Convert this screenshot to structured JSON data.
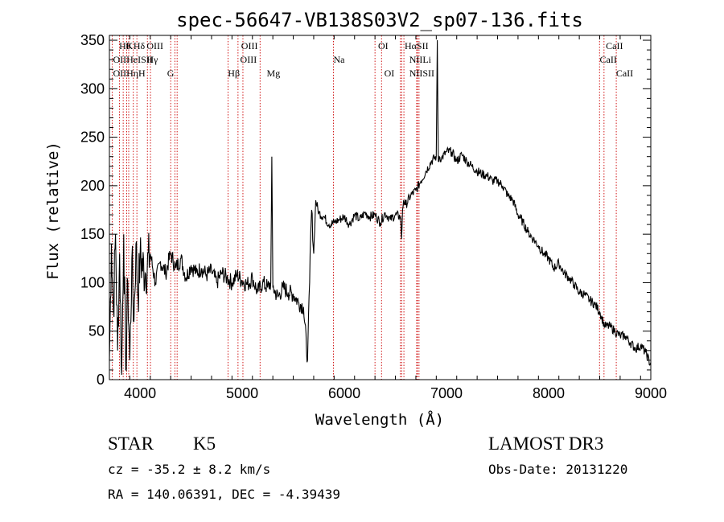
{
  "chart_data": {
    "type": "line",
    "title": "spec-56647-VB138S03V2_sp07-136.fits",
    "xlabel": "Wavelength (Å)",
    "ylabel": "Flux (relative)",
    "xlim": [
      3700,
      9000
    ],
    "ylim": [
      0,
      355
    ],
    "xticks": [
      4000,
      5000,
      6000,
      7000,
      8000,
      9000
    ],
    "yticks": [
      0,
      50,
      100,
      150,
      200,
      250,
      300,
      350
    ],
    "grid": false,
    "series": [
      {
        "x": [
          3700,
          3720,
          3740,
          3760,
          3780,
          3800,
          3820,
          3840,
          3860,
          3880,
          3900,
          3920,
          3940,
          3960,
          3980,
          4000,
          4050,
          4100,
          4150,
          4200,
          4250,
          4300,
          4350,
          4400,
          4450,
          4500,
          4550,
          4600,
          4650,
          4700,
          4750,
          4800,
          4850,
          4900,
          4950,
          5000,
          5050,
          5100,
          5150,
          5200,
          5250,
          5280,
          5290,
          5300,
          5350,
          5400,
          5450,
          5500,
          5550,
          5600,
          5640,
          5660,
          5670,
          5680,
          5700,
          5720,
          5750,
          5800,
          5850,
          5900,
          5950,
          6000,
          6050,
          6100,
          6150,
          6200,
          6250,
          6300,
          6350,
          6400,
          6450,
          6500,
          6550,
          6560,
          6570,
          6580,
          6600,
          6650,
          6700,
          6750,
          6800,
          6850,
          6900,
          6910,
          6920,
          6930,
          6950,
          7000,
          7050,
          7100,
          7150,
          7200,
          7250,
          7300,
          7350,
          7400,
          7450,
          7500,
          7550,
          7600,
          7650,
          7700,
          7750,
          7800,
          7850,
          7900,
          7950,
          8000,
          8050,
          8100,
          8150,
          8200,
          8250,
          8300,
          8350,
          8400,
          8450,
          8500,
          8550,
          8600,
          8650,
          8700,
          8750,
          8800,
          8850,
          8900,
          8950,
          9000
        ],
        "y": [
          20,
          140,
          70,
          150,
          30,
          130,
          5,
          150,
          10,
          100,
          20,
          125,
          60,
          140,
          85,
          125,
          110,
          130,
          100,
          122,
          110,
          130,
          115,
          125,
          105,
          118,
          110,
          115,
          108,
          112,
          100,
          110,
          105,
          100,
          108,
          102,
          98,
          105,
          90,
          100,
          95,
          100,
          230,
          95,
          85,
          95,
          90,
          88,
          80,
          75,
          20,
          100,
          150,
          175,
          130,
          185,
          172,
          168,
          160,
          162,
          165,
          168,
          160,
          170,
          165,
          172,
          168,
          170,
          162,
          172,
          165,
          170,
          168,
          145,
          175,
          185,
          180,
          190,
          195,
          205,
          215,
          225,
          230,
          350,
          225,
          230,
          228,
          235,
          235,
          225,
          232,
          225,
          220,
          215,
          212,
          210,
          205,
          205,
          200,
          190,
          185,
          170,
          162,
          152,
          145,
          138,
          130,
          125,
          115,
          120,
          110,
          105,
          98,
          90,
          88,
          82,
          78,
          70,
          55,
          55,
          50,
          45,
          45,
          38,
          32,
          35,
          28,
          15
        ]
      }
    ],
    "lines": [
      {
        "x": 3727,
        "labels": [
          "OII"
        ]
      },
      {
        "x": 3798,
        "labels": [
          "Hθ"
        ]
      },
      {
        "x": 3835,
        "labels": [
          "Hη"
        ]
      },
      {
        "x": 3869,
        "labels": [
          "NeIII"
        ]
      },
      {
        "x": 3889,
        "labels": [
          "HeI"
        ]
      },
      {
        "x": 3934,
        "labels": [
          "K"
        ]
      },
      {
        "x": 3969,
        "labels": [
          "H"
        ]
      },
      {
        "x": 4072,
        "labels": [
          "SII"
        ]
      },
      {
        "x": 4102,
        "labels": [
          "Hδ"
        ]
      },
      {
        "x": 4300,
        "labels": [
          "G"
        ]
      },
      {
        "x": 4341,
        "labels": [
          "Hγ"
        ]
      },
      {
        "x": 4363,
        "labels": [
          "OIII"
        ]
      },
      {
        "x": 4861,
        "labels": [
          "Hβ"
        ]
      },
      {
        "x": 4959,
        "labels": [
          "OIII"
        ]
      },
      {
        "x": 5007,
        "labels": [
          "OIII"
        ]
      },
      {
        "x": 5175,
        "labels": [
          "Mg"
        ]
      },
      {
        "x": 5893,
        "labels": [
          "Na"
        ]
      },
      {
        "x": 6300,
        "labels": [
          "OI"
        ]
      },
      {
        "x": 6364,
        "labels": [
          "OI"
        ]
      },
      {
        "x": 6548,
        "labels": [
          "NII"
        ]
      },
      {
        "x": 6563,
        "labels": [
          "Hα"
        ]
      },
      {
        "x": 6583,
        "labels": [
          "NII"
        ]
      },
      {
        "x": 6708,
        "labels": [
          "Li"
        ]
      },
      {
        "x": 6716,
        "labels": [
          "SII"
        ]
      },
      {
        "x": 6731,
        "labels": [
          "SII"
        ]
      },
      {
        "x": 8498,
        "labels": [
          "CaII"
        ]
      },
      {
        "x": 8542,
        "labels": [
          "CaII"
        ]
      },
      {
        "x": 8662,
        "labels": [
          "CaII"
        ]
      }
    ],
    "line_label_texts": {
      "r1": [
        {
          "x": 3795,
          "t": "Hθ"
        },
        {
          "x": 3862,
          "t": "K"
        },
        {
          "x": 3935,
          "t": "Hδ"
        },
        {
          "x": 4065,
          "t": "OIII"
        },
        {
          "x": 4990,
          "t": "OIII"
        },
        {
          "x": 6330,
          "t": "OI"
        },
        {
          "x": 6590,
          "t": "HαSII"
        },
        {
          "x": 8560,
          "t": "CaII"
        }
      ],
      "r2": [
        {
          "x": 3735,
          "t": "OIIHeISII"
        },
        {
          "x": 4065,
          "t": "Hγ"
        },
        {
          "x": 4980,
          "t": "OIII"
        },
        {
          "x": 5893,
          "t": "Na"
        },
        {
          "x": 6635,
          "t": "NIILi"
        },
        {
          "x": 8500,
          "t": "CaII"
        }
      ],
      "r3": [
        {
          "x": 3735,
          "t": "OIIHηH"
        },
        {
          "x": 4265,
          "t": "G"
        },
        {
          "x": 4860,
          "t": "Hβ"
        },
        {
          "x": 5240,
          "t": "Mg"
        },
        {
          "x": 6390,
          "t": "OI"
        },
        {
          "x": 6635,
          "t": "NIISII"
        },
        {
          "x": 8660,
          "t": "CaII"
        }
      ]
    },
    "colors": {
      "spectrum": "#000000",
      "lines": "#cc0000"
    }
  },
  "info": {
    "object_class": "STAR",
    "subclass": "K5",
    "redshift": "cz = -35.2 ± 8.2 km/s",
    "coords": "RA = 140.06391, DEC =  -4.39439",
    "survey": "LAMOST DR3",
    "obs_date": "Obs-Date: 20131220"
  }
}
